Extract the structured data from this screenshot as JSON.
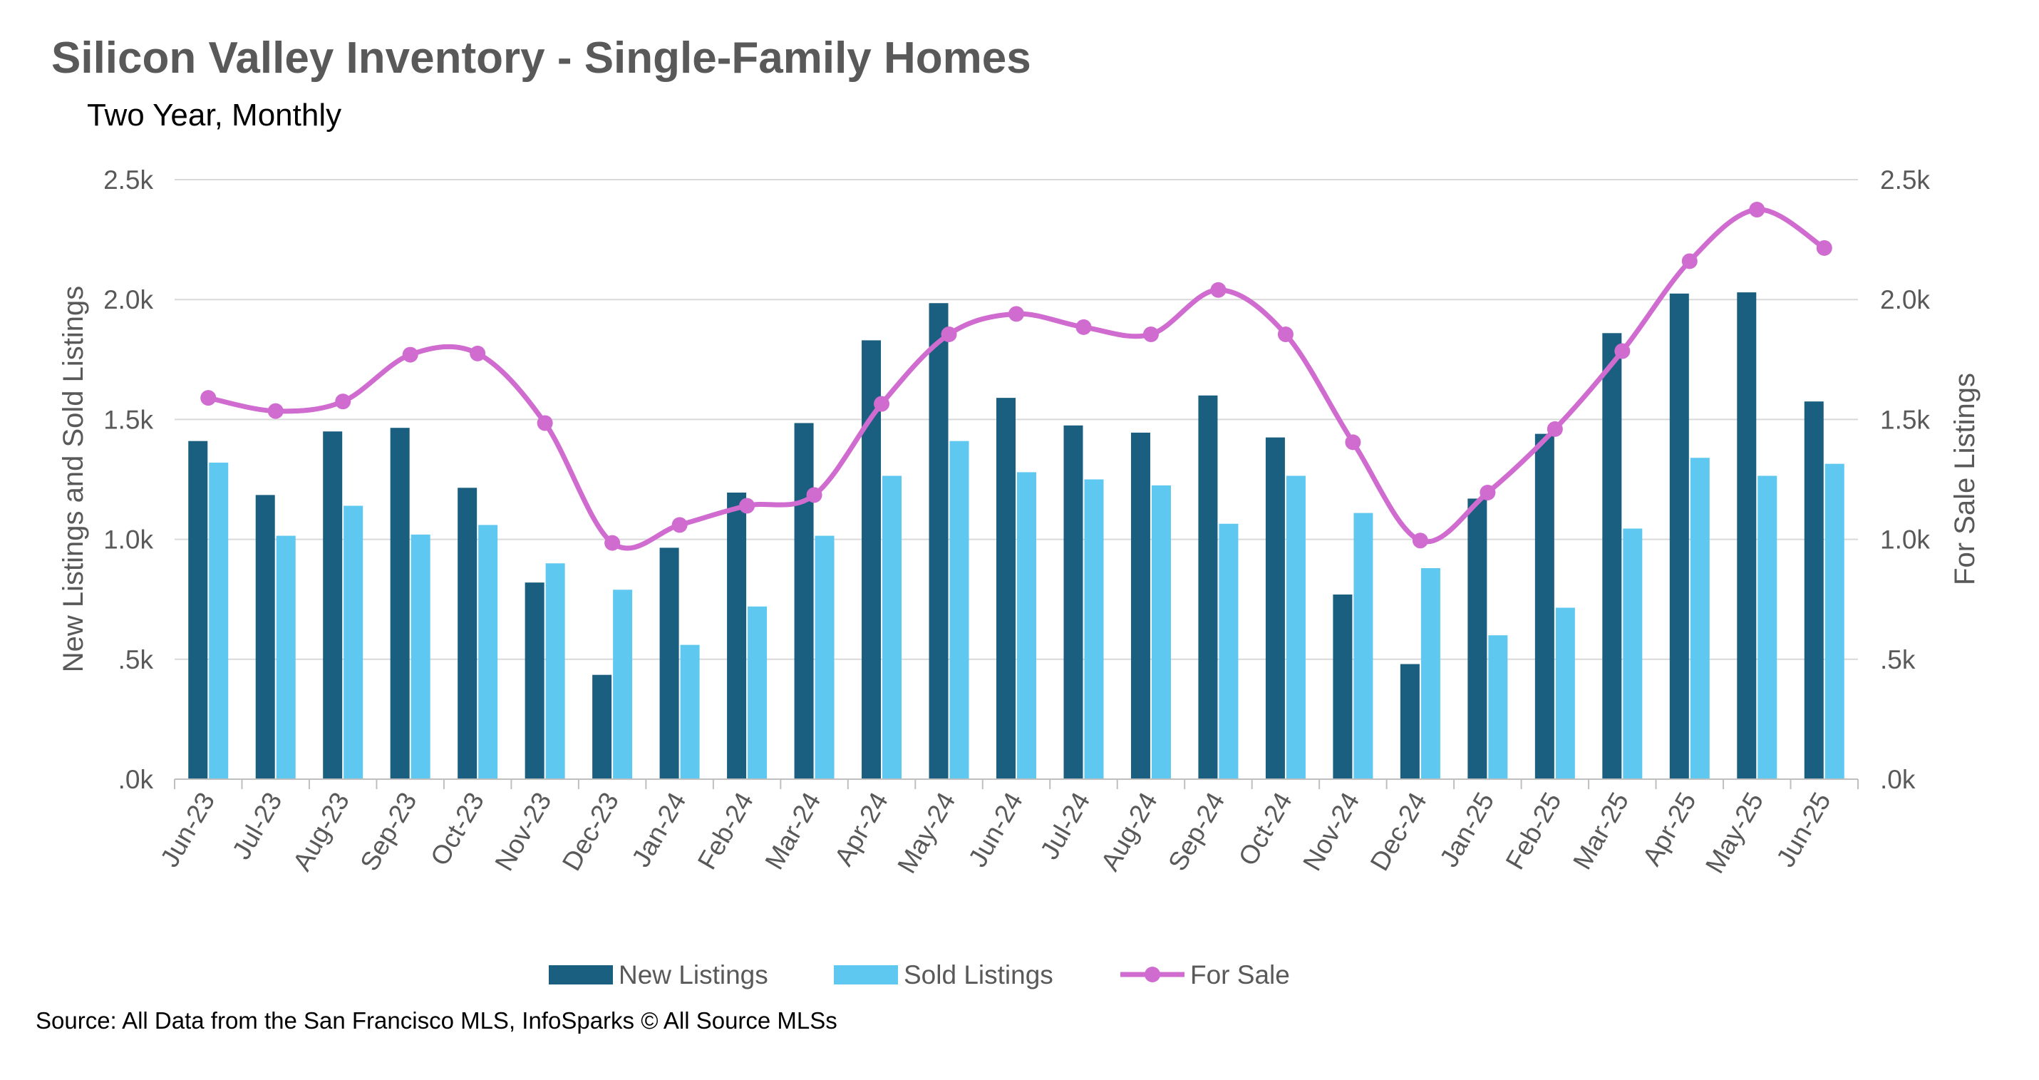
{
  "title": "Silicon Valley Inventory - Single-Family Homes",
  "subtitle": "Two Year, Monthly",
  "source": "Source: All Data from the San Francisco MLS, InfoSparks © All Source MLSs",
  "colors": {
    "new_listings": "#1a5f80",
    "sold_listings": "#5fc8f0",
    "for_sale": "#d06bd0"
  },
  "chart_data": {
    "type": "bar",
    "title": "Silicon Valley Inventory - Single-Family Homes",
    "subtitle": "Two Year, Monthly",
    "categories": [
      "Jun-23",
      "Jul-23",
      "Aug-23",
      "Sep-23",
      "Oct-23",
      "Nov-23",
      "Dec-23",
      "Jan-24",
      "Feb-24",
      "Mar-24",
      "Apr-24",
      "May-24",
      "Jun-24",
      "Jul-24",
      "Aug-24",
      "Sep-24",
      "Oct-24",
      "Nov-24",
      "Dec-24",
      "Jan-25",
      "Feb-25",
      "Mar-25",
      "Apr-25",
      "May-25",
      "Jun-25"
    ],
    "series": [
      {
        "name": "New Listings",
        "type": "bar",
        "axis": "left",
        "values": [
          1410,
          1185,
          1450,
          1465,
          1215,
          820,
          435,
          965,
          1195,
          1485,
          1830,
          1985,
          1590,
          1475,
          1445,
          1600,
          1425,
          770,
          480,
          1170,
          1440,
          1860,
          2025,
          2030,
          1575
        ]
      },
      {
        "name": "Sold Listings",
        "type": "bar",
        "axis": "left",
        "values": [
          1320,
          1015,
          1140,
          1020,
          1060,
          900,
          790,
          560,
          720,
          1015,
          1265,
          1410,
          1280,
          1250,
          1225,
          1065,
          1265,
          1110,
          880,
          600,
          715,
          1045,
          1340,
          1265,
          1315
        ]
      },
      {
        "name": "For Sale",
        "type": "line",
        "axis": "right",
        "values": [
          1590,
          1535,
          1575,
          1770,
          1775,
          1485,
          985,
          1060,
          1140,
          1185,
          1565,
          1855,
          1940,
          1885,
          1855,
          2040,
          1855,
          1405,
          995,
          1195,
          1460,
          1785,
          2160,
          2375,
          2215
        ]
      }
    ],
    "ylabel": "New Listings and Sold Listings",
    "y2label": "For Sale Listings",
    "ylim": [
      0,
      2500
    ],
    "y2lim": [
      0,
      2500
    ],
    "yticks": [
      ".0k",
      ".5k",
      "1.0k",
      "1.5k",
      "2.0k",
      "2.5k"
    ],
    "y2ticks": [
      ".0k",
      ".5k",
      "1.0k",
      "1.5k",
      "2.0k",
      "2.5k"
    ],
    "grid": true,
    "legend_position": "bottom"
  }
}
